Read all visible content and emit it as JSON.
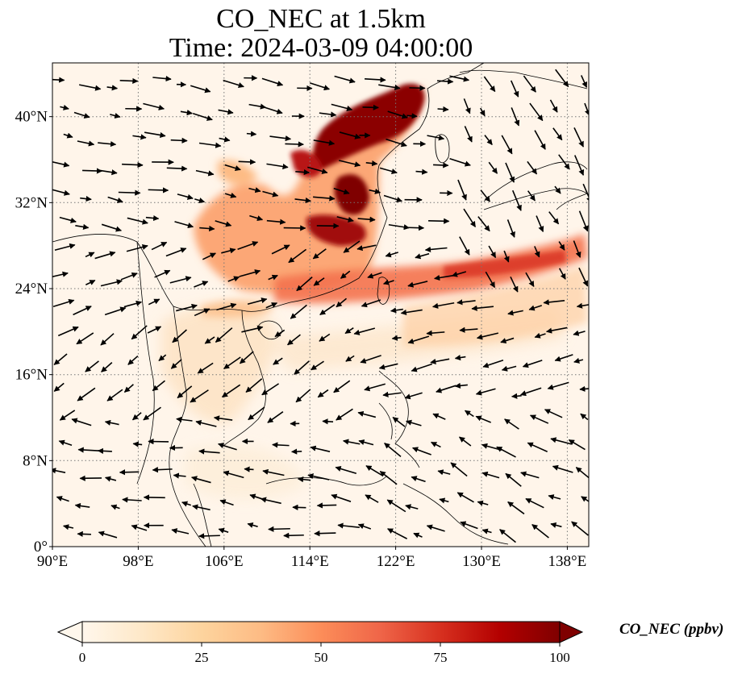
{
  "title": {
    "line1": "CO_NEC at 1.5km",
    "line2": "Time: 2024-03-09 04:00:00"
  },
  "map": {
    "lon_range": [
      90,
      140
    ],
    "lat_range": [
      0,
      45
    ],
    "lon_ticks": [
      {
        "value": 90,
        "label": "90°E"
      },
      {
        "value": 98,
        "label": "98°E"
      },
      {
        "value": 106,
        "label": "106°E"
      },
      {
        "value": 114,
        "label": "114°E"
      },
      {
        "value": 122,
        "label": "122°E"
      },
      {
        "value": 130,
        "label": "130°E"
      },
      {
        "value": 138,
        "label": "138°E"
      }
    ],
    "lat_ticks": [
      {
        "value": 0,
        "label": "0°"
      },
      {
        "value": 8,
        "label": "8°N"
      },
      {
        "value": 16,
        "label": "16°N"
      },
      {
        "value": 24,
        "label": "24°N"
      },
      {
        "value": 32,
        "label": "32°N"
      },
      {
        "value": 40,
        "label": "40°N"
      }
    ],
    "gridlines": "dotted",
    "wind_vectors": "black arrows"
  },
  "colorbar": {
    "label": "CO_NEC (ppbv)",
    "min": 0,
    "max": 100,
    "ticks": [
      "0",
      "25",
      "50",
      "75",
      "100"
    ],
    "colormap": [
      "#fff7ec",
      "#fee8c8",
      "#fdd49e",
      "#fdbb84",
      "#fc8d59",
      "#ef6548",
      "#d7301f",
      "#b30000",
      "#7f0000"
    ],
    "extend": "both"
  }
}
